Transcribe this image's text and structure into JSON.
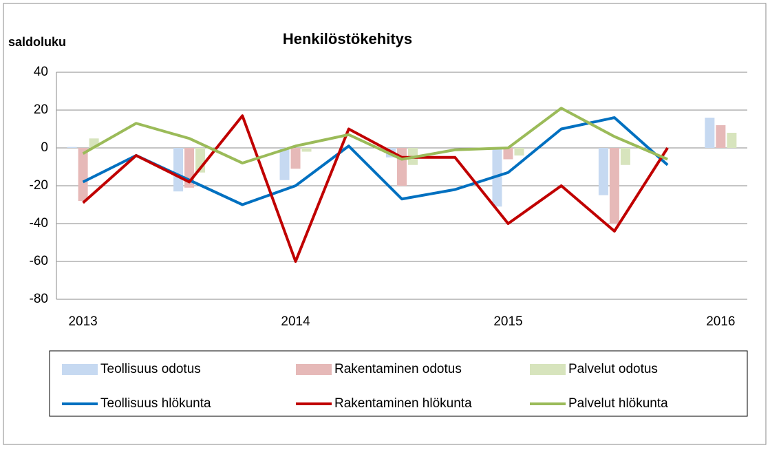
{
  "chart_data": {
    "type": "combo",
    "title": "Henkilöstökehitys",
    "y_label": "saldoluku",
    "categories": [
      "2013",
      null,
      null,
      null,
      "2014",
      null,
      null,
      null,
      "2015",
      null,
      null,
      null,
      "2016"
    ],
    "ylim": [
      -80,
      40
    ],
    "yticks": [
      -80,
      -60,
      -40,
      -20,
      0,
      20,
      40
    ],
    "grid": true,
    "series": [
      {
        "name": "Teollisuus odotus",
        "type": "bar",
        "color": "#c6d9f1",
        "values": [
          0.5,
          null,
          -23,
          null,
          -17,
          null,
          -5,
          null,
          -31,
          null,
          -25,
          null,
          16
        ]
      },
      {
        "name": "Rakentaminen odotus",
        "type": "bar",
        "color": "#e6b9b8",
        "values": [
          -28,
          null,
          -21,
          null,
          -11,
          null,
          -20,
          null,
          -6,
          null,
          -40,
          null,
          12
        ]
      },
      {
        "name": "Palvelut odotus",
        "type": "bar",
        "color": "#d7e4bd",
        "values": [
          5,
          null,
          -13,
          null,
          -2,
          null,
          -9,
          null,
          -4,
          null,
          -9,
          null,
          8
        ]
      },
      {
        "name": "Teollisuus hlökunta",
        "type": "line",
        "color": "#0070c0",
        "values": [
          -18,
          -4,
          -17,
          -30,
          -20,
          1,
          -27,
          -22,
          -13,
          10,
          16,
          -9,
          null
        ]
      },
      {
        "name": "Rakentaminen hlökunta",
        "type": "line",
        "color": "#c00000",
        "values": [
          -29,
          -4,
          -18,
          17,
          -60,
          10,
          -5,
          -5,
          -40,
          -20,
          -44,
          0,
          null
        ]
      },
      {
        "name": "Palvelut hlökunta",
        "type": "line",
        "color": "#9bbb59",
        "values": [
          -3,
          13,
          5,
          -8,
          1,
          7,
          -6,
          -1,
          0,
          21,
          6,
          -6,
          null
        ]
      }
    ]
  }
}
